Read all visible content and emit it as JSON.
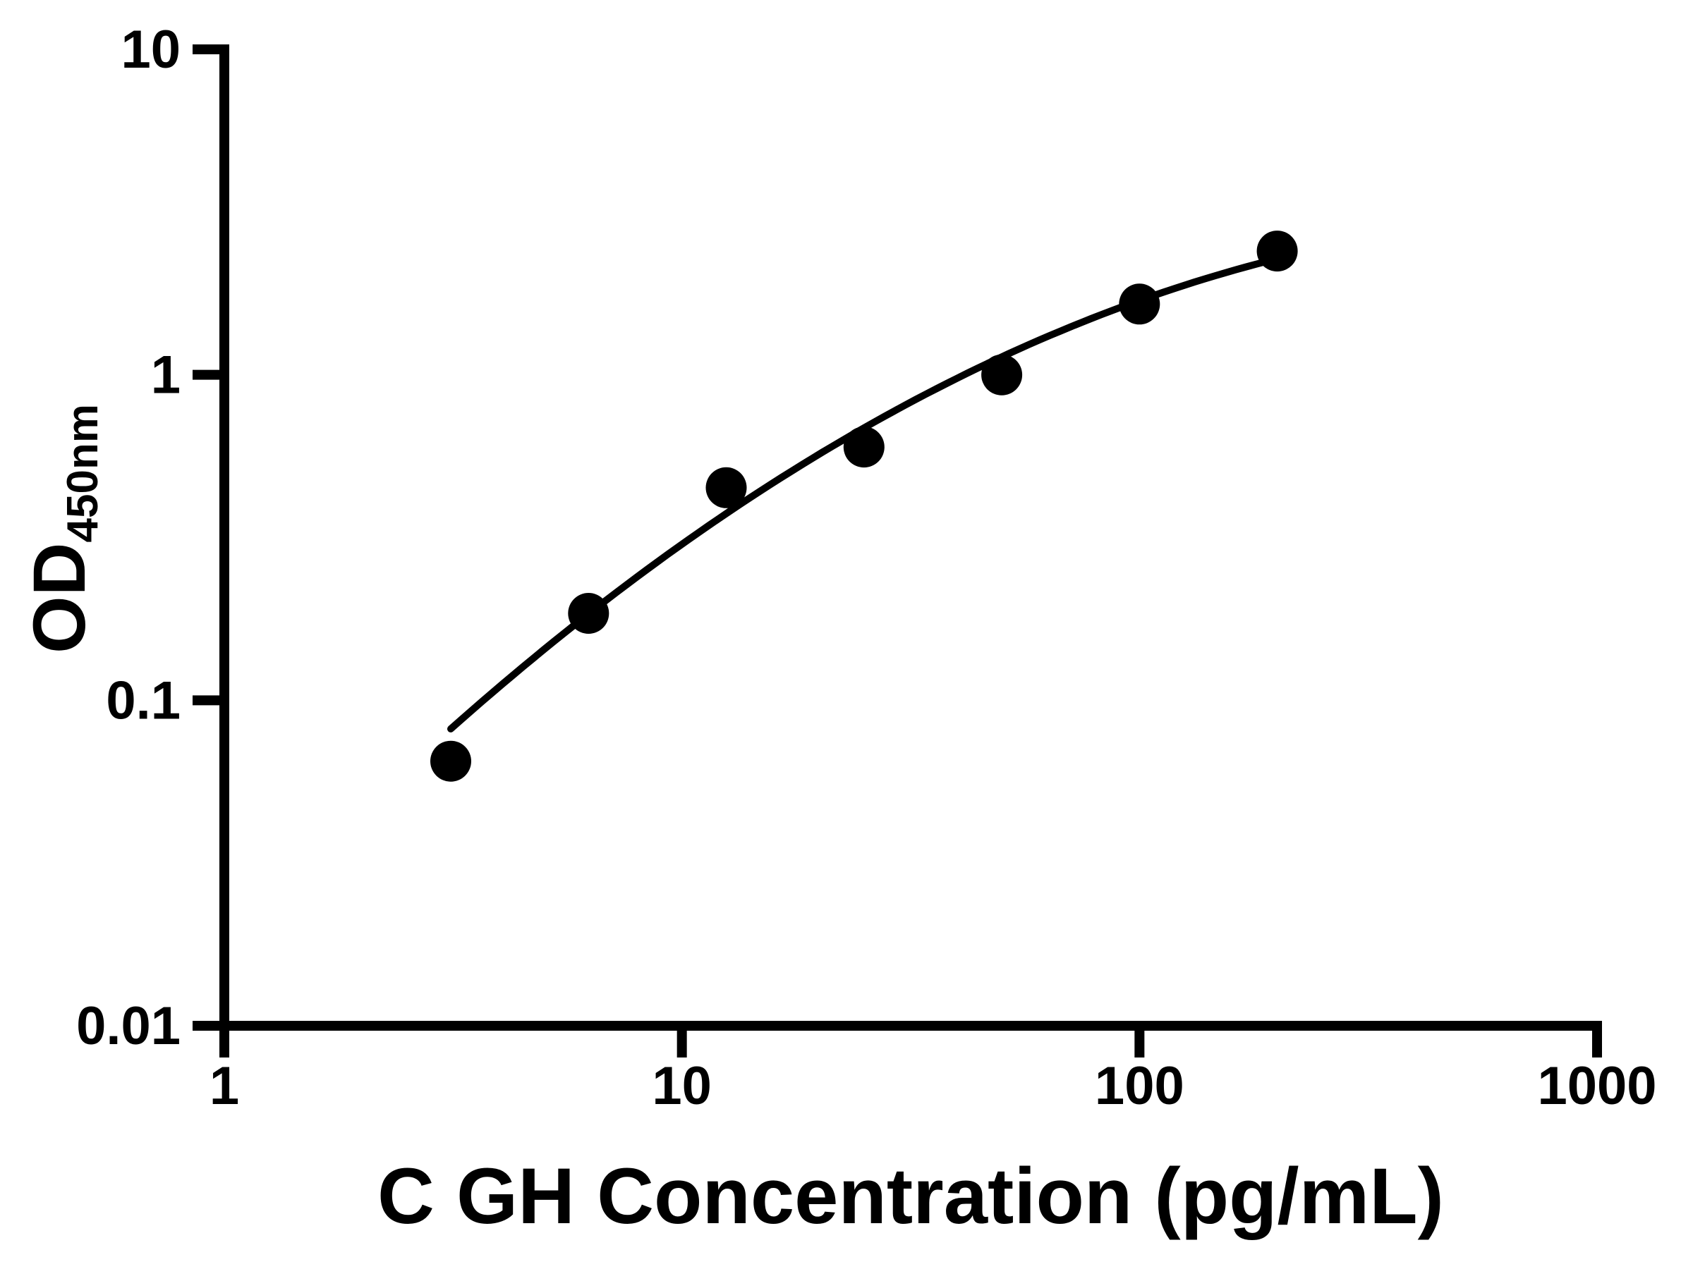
{
  "figure": {
    "background": "#ffffff",
    "ink_color": "#000000"
  },
  "chart_data": {
    "type": "scatter",
    "title": "",
    "xlabel": "C GH Concentration (pg/mL)",
    "ylabel": {
      "main": "OD",
      "subscript": "450nm"
    },
    "x_scale": "log10",
    "y_scale": "log10",
    "xlim": [
      1,
      1000
    ],
    "ylim": [
      0.01,
      10
    ],
    "grid": false,
    "legend_position": "none",
    "x_ticks": {
      "values": [
        1,
        10,
        100,
        1000
      ],
      "labels": [
        "1",
        "10",
        "100",
        "1000"
      ]
    },
    "y_ticks": {
      "values": [
        10,
        1,
        0.1,
        0.01
      ],
      "labels": [
        "10",
        "1",
        "0.1",
        "0.01"
      ]
    },
    "series": [
      {
        "name": "standard-curve-points",
        "marker": "filled-circle",
        "marker_color": "#000000",
        "marker_radius_px": 29,
        "x": [
          3.125,
          6.25,
          12.5,
          25,
          50,
          100,
          200
        ],
        "y": [
          0.065,
          0.185,
          0.45,
          0.6,
          1.0,
          1.65,
          2.4
        ]
      }
    ],
    "fit_curve": {
      "model": "quadratic-in-loglog",
      "formula": "log10(OD) = a + b*t + c*t^2, where t = log10(conc) - 1.3979",
      "a": -0.1631,
      "b": 0.7998,
      "c": -0.2484,
      "t_center": 1.3979,
      "x_range": [
        3.125,
        200
      ],
      "line_color": "#000000"
    }
  }
}
